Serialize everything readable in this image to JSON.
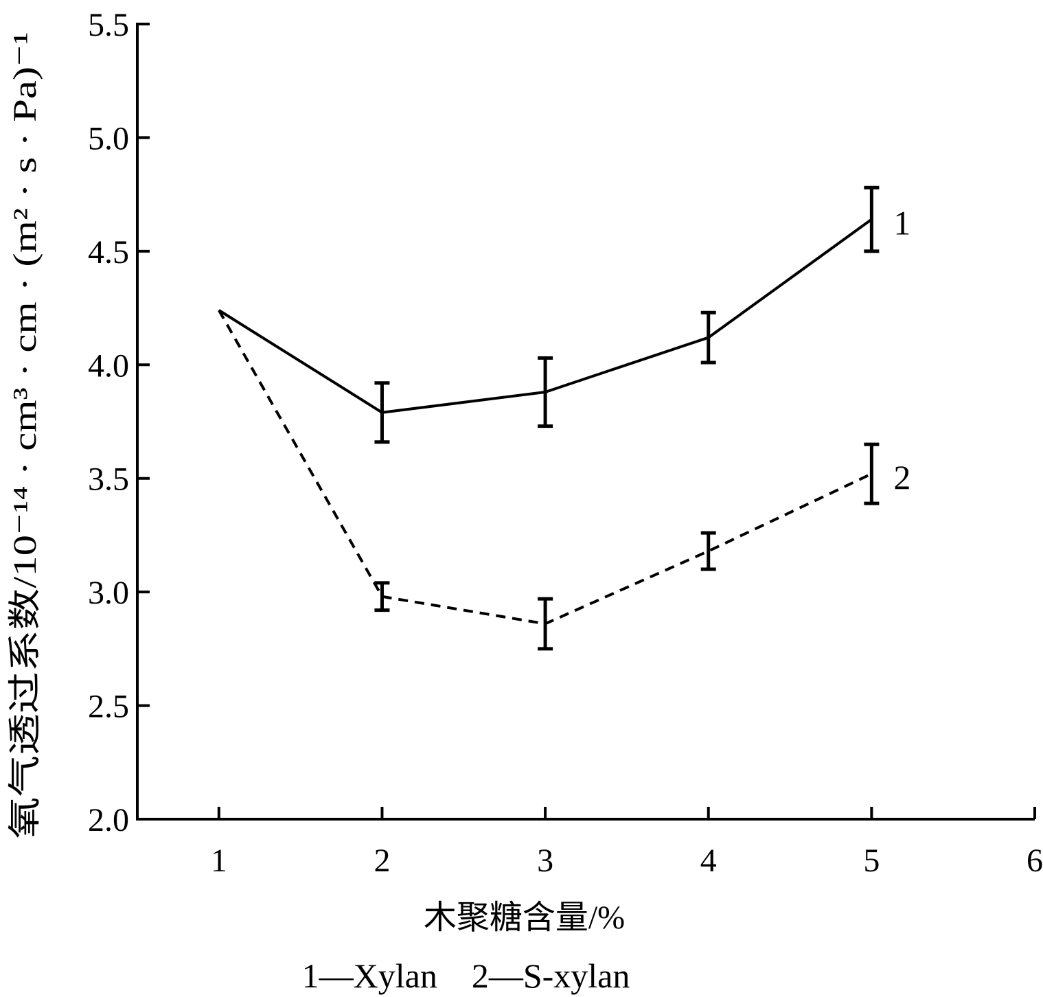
{
  "chart_data": {
    "type": "line",
    "xlabel": "木聚糖含量/%",
    "ylabel": "氧气透过系数/10⁻¹⁴ · cm³ · cm · (m² · s · Pa)⁻¹",
    "xlim": [
      0.5,
      6
    ],
    "ylim": [
      2.0,
      5.5
    ],
    "xticks": [
      1,
      2,
      3,
      4,
      5,
      6
    ],
    "xtick_labels": [
      "1",
      "2",
      "3",
      "4",
      "5",
      "6"
    ],
    "yticks": [
      2.0,
      2.5,
      3.0,
      3.5,
      4.0,
      4.5,
      5.0,
      5.5
    ],
    "ytick_labels": [
      "2.0",
      "2.5",
      "3.0",
      "3.5",
      "4.0",
      "4.5",
      "5.0",
      "5.5"
    ],
    "grid": false,
    "series": [
      {
        "name": "1",
        "line_style": "solid",
        "x": [
          1,
          2,
          3,
          4,
          5
        ],
        "y": [
          4.24,
          3.79,
          3.88,
          4.12,
          4.64
        ],
        "error": [
          null,
          0.13,
          0.15,
          0.11,
          0.14
        ]
      },
      {
        "name": "2",
        "line_style": "dashed",
        "x": [
          1,
          2,
          3,
          4,
          5
        ],
        "y": [
          4.24,
          2.98,
          2.86,
          3.18,
          3.52
        ],
        "error": [
          null,
          0.06,
          0.11,
          0.08,
          0.13
        ]
      }
    ],
    "legend_caption": "1—Xylan　2—S-xylan"
  }
}
